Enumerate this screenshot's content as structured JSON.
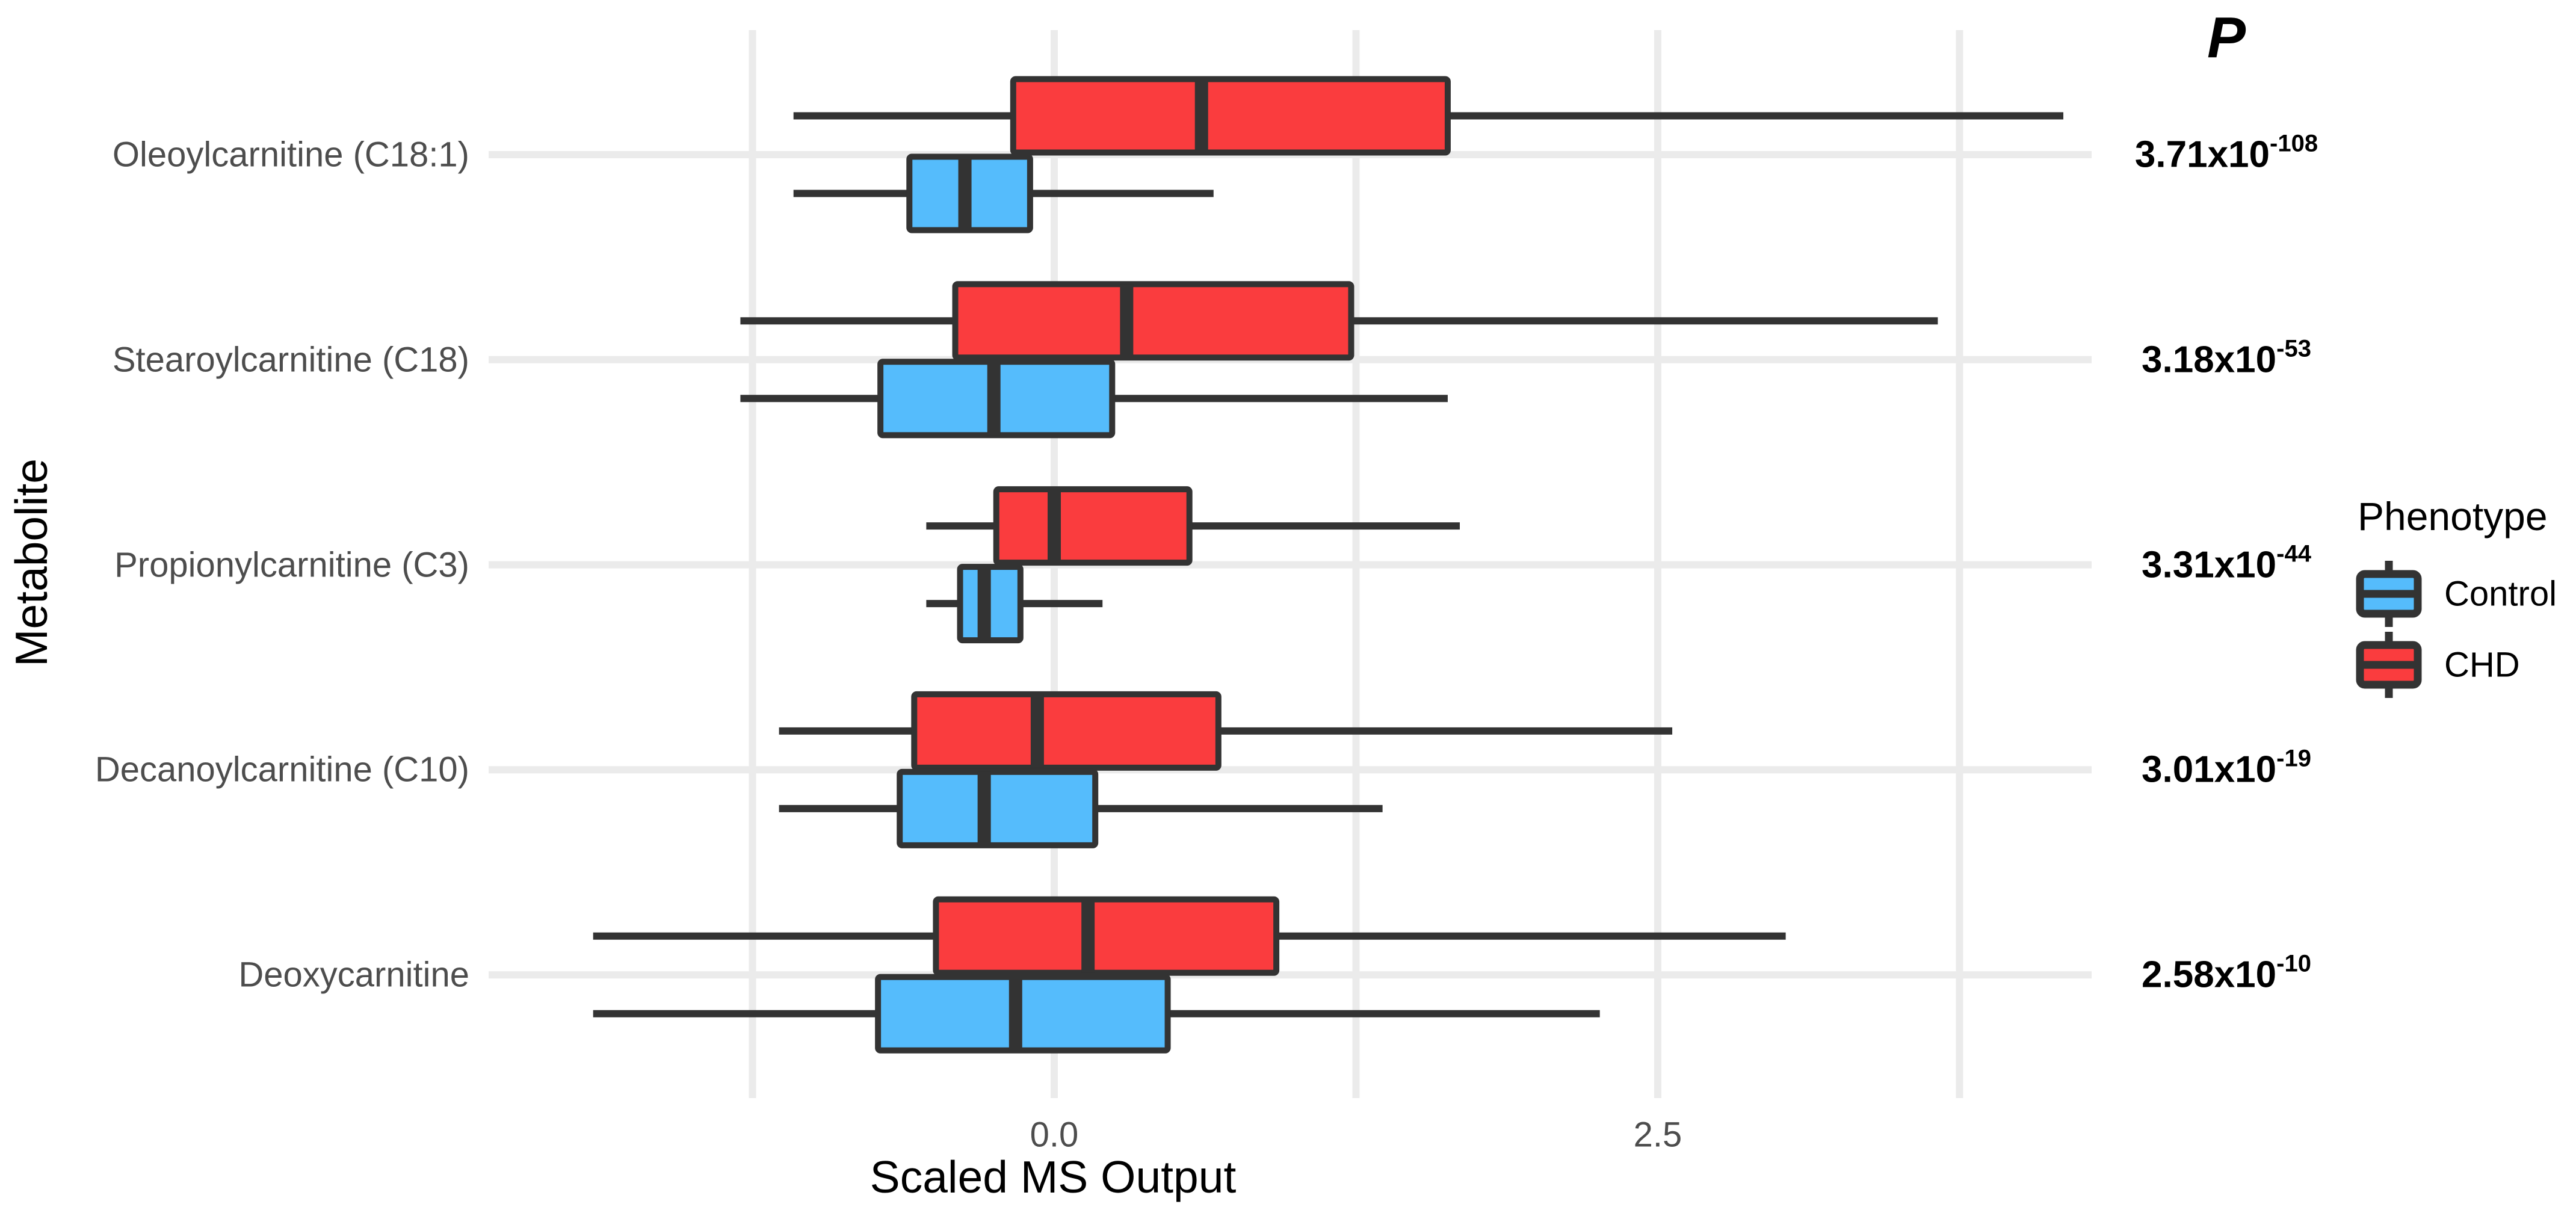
{
  "chart_data": {
    "type": "boxplot",
    "orientation": "horizontal",
    "title": "",
    "xlabel": "Scaled MS Output",
    "ylabel": "Metabolite",
    "p_column_header": "P",
    "x_ticks": [
      {
        "value": 0.0,
        "label": "0.0"
      },
      {
        "value": 2.5,
        "label": "2.5"
      }
    ],
    "x_gridline_values": [
      -1.25,
      0,
      1.25,
      2.5,
      3.75
    ],
    "xlim": [
      -2.33,
      4.3
    ],
    "grid": true,
    "legend": {
      "title": "Phenotype",
      "position": "right",
      "entries": [
        {
          "label": "Control",
          "group": "control"
        },
        {
          "label": "CHD",
          "group": "chd"
        }
      ]
    },
    "colors": {
      "control": "#55BCFC",
      "chd": "#FA3C3E",
      "stroke": "#333333",
      "gridline": "#EBEBEB",
      "axis_text": "#4D4D4D",
      "title_text": "#000000"
    },
    "rows": [
      {
        "metabolite": "Oleoylcarnitine (C18:1)",
        "p_value": {
          "base": "3.71x10",
          "exponent": "-108"
        },
        "chd": {
          "whisker_low": -1.08,
          "q1": -0.17,
          "median": 0.61,
          "q3": 1.63,
          "whisker_high": 4.18
        },
        "control": {
          "whisker_low": -1.08,
          "q1": -0.6,
          "median": -0.37,
          "q3": -0.1,
          "whisker_high": 0.66
        }
      },
      {
        "metabolite": "Stearoylcarnitine (C18)",
        "p_value": {
          "base": "3.18x10",
          "exponent": "-53"
        },
        "chd": {
          "whisker_low": -1.3,
          "q1": -0.41,
          "median": 0.3,
          "q3": 1.23,
          "whisker_high": 3.66
        },
        "control": {
          "whisker_low": -1.3,
          "q1": -0.72,
          "median": -0.25,
          "q3": 0.24,
          "whisker_high": 1.63
        }
      },
      {
        "metabolite": "Propionylcarnitine (C3)",
        "p_value": {
          "base": "3.31x10",
          "exponent": "-44"
        },
        "chd": {
          "whisker_low": -0.53,
          "q1": -0.24,
          "median": 0.0,
          "q3": 0.56,
          "whisker_high": 1.68
        },
        "control": {
          "whisker_low": -0.53,
          "q1": -0.39,
          "median": -0.29,
          "q3": -0.14,
          "whisker_high": 0.2
        }
      },
      {
        "metabolite": "Decanoylcarnitine (C10)",
        "p_value": {
          "base": "3.01x10",
          "exponent": "-19"
        },
        "chd": {
          "whisker_low": -1.14,
          "q1": -0.58,
          "median": -0.07,
          "q3": 0.68,
          "whisker_high": 2.56
        },
        "control": {
          "whisker_low": -1.14,
          "q1": -0.64,
          "median": -0.29,
          "q3": 0.17,
          "whisker_high": 1.36
        }
      },
      {
        "metabolite": "Deoxycarnitine",
        "p_value": {
          "base": "2.58x10",
          "exponent": "-10"
        },
        "chd": {
          "whisker_low": -1.91,
          "q1": -0.49,
          "median": 0.14,
          "q3": 0.92,
          "whisker_high": 3.03
        },
        "control": {
          "whisker_low": -1.91,
          "q1": -0.73,
          "median": -0.16,
          "q3": 0.47,
          "whisker_high": 2.26
        }
      }
    ]
  }
}
